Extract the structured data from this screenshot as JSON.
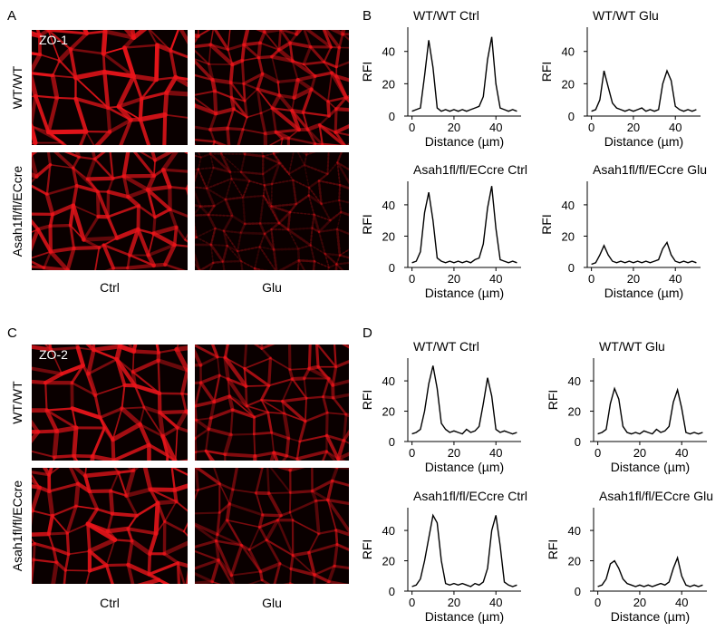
{
  "panels": [
    {
      "label": "A",
      "stain": "ZO-1",
      "rows": [
        "WT/WT",
        "Asah1fl/fl/ECcre"
      ],
      "columns": [
        "Ctrl",
        "Glu"
      ]
    },
    {
      "label": "B"
    },
    {
      "label": "C",
      "stain": "ZO-2",
      "rows": [
        "WT/WT",
        "Asah1fl/fl/ECcre"
      ],
      "columns": [
        "Ctrl",
        "Glu"
      ]
    },
    {
      "label": "D"
    }
  ],
  "chart_data": [
    {
      "type": "line",
      "title": "WT/WT Ctrl",
      "x_label": "Distance (µm)",
      "y_label": "RFI",
      "color": "#000000",
      "x": [
        0,
        2,
        4,
        6,
        8,
        10,
        12,
        14,
        16,
        18,
        20,
        22,
        24,
        26,
        28,
        30,
        32,
        34,
        36,
        38,
        40,
        42,
        44,
        46,
        48,
        50
      ],
      "values": [
        3,
        4,
        5,
        25,
        47,
        30,
        5,
        3,
        4,
        3,
        4,
        3,
        4,
        3,
        4,
        5,
        6,
        12,
        35,
        49,
        20,
        5,
        4,
        3,
        4,
        3
      ],
      "xlim": [
        -2,
        52
      ],
      "xticks": [
        0,
        20,
        40
      ],
      "ylim": [
        0,
        55
      ],
      "yticks": [
        0,
        20,
        40
      ]
    },
    {
      "type": "line",
      "title": "WT/WT Glu",
      "x_label": "Distance (µm)",
      "y_label": "RFI",
      "color": "#000000",
      "x": [
        0,
        2,
        4,
        6,
        8,
        10,
        12,
        14,
        16,
        18,
        20,
        22,
        24,
        26,
        28,
        30,
        32,
        34,
        36,
        38,
        40,
        42,
        44,
        46,
        48,
        50
      ],
      "values": [
        3,
        4,
        10,
        28,
        18,
        8,
        5,
        4,
        3,
        4,
        3,
        4,
        5,
        3,
        4,
        3,
        4,
        20,
        28,
        22,
        6,
        4,
        3,
        4,
        3,
        4
      ],
      "xlim": [
        -2,
        52
      ],
      "xticks": [
        0,
        20,
        40
      ],
      "ylim": [
        0,
        55
      ],
      "yticks": [
        0,
        20,
        40
      ]
    },
    {
      "type": "line",
      "title": "Asah1fl/fl/ECcre Ctrl",
      "x_label": "Distance (µm)",
      "y_label": "RFI",
      "color": "#000000",
      "x": [
        0,
        2,
        4,
        6,
        8,
        10,
        12,
        14,
        16,
        18,
        20,
        22,
        24,
        26,
        28,
        30,
        32,
        34,
        36,
        38,
        40,
        42,
        44,
        46,
        48,
        50
      ],
      "values": [
        3,
        4,
        10,
        35,
        48,
        30,
        6,
        4,
        3,
        4,
        3,
        4,
        3,
        4,
        3,
        5,
        6,
        15,
        38,
        52,
        25,
        5,
        4,
        3,
        4,
        3
      ],
      "xlim": [
        -2,
        52
      ],
      "xticks": [
        0,
        20,
        40
      ],
      "ylim": [
        0,
        55
      ],
      "yticks": [
        0,
        20,
        40
      ]
    },
    {
      "type": "line",
      "title": "Asah1fl/fl/ECcre Glu",
      "x_label": "Distance (µm)",
      "y_label": "RFI",
      "color": "#000000",
      "x": [
        0,
        2,
        4,
        6,
        8,
        10,
        12,
        14,
        16,
        18,
        20,
        22,
        24,
        26,
        28,
        30,
        32,
        34,
        36,
        38,
        40,
        42,
        44,
        46,
        48,
        50
      ],
      "values": [
        2,
        3,
        8,
        14,
        8,
        4,
        3,
        4,
        3,
        4,
        3,
        4,
        3,
        4,
        3,
        4,
        5,
        12,
        16,
        8,
        4,
        3,
        4,
        3,
        4,
        3
      ],
      "xlim": [
        -2,
        52
      ],
      "xticks": [
        0,
        20,
        40
      ],
      "ylim": [
        0,
        55
      ],
      "yticks": [
        0,
        20,
        40
      ]
    },
    {
      "type": "line",
      "title": "WT/WT Ctrl",
      "x_label": "Distance (µm)",
      "y_label": "RFI",
      "color": "#000000",
      "x": [
        0,
        2,
        4,
        6,
        8,
        10,
        12,
        14,
        16,
        18,
        20,
        22,
        24,
        26,
        28,
        30,
        32,
        34,
        36,
        38,
        40,
        42,
        44,
        46,
        48,
        50
      ],
      "values": [
        5,
        6,
        8,
        20,
        38,
        50,
        35,
        12,
        8,
        6,
        7,
        6,
        5,
        8,
        6,
        7,
        10,
        25,
        42,
        30,
        8,
        6,
        7,
        6,
        5,
        6
      ],
      "xlim": [
        -2,
        52
      ],
      "xticks": [
        0,
        20,
        40
      ],
      "ylim": [
        0,
        55
      ],
      "yticks": [
        0,
        20,
        40
      ]
    },
    {
      "type": "line",
      "title": "WT/WT Glu",
      "x_label": "Distance (µm)",
      "y_label": "RFI",
      "color": "#000000",
      "x": [
        0,
        2,
        4,
        6,
        8,
        10,
        12,
        14,
        16,
        18,
        20,
        22,
        24,
        26,
        28,
        30,
        32,
        34,
        36,
        38,
        40,
        42,
        44,
        46,
        48,
        50
      ],
      "values": [
        5,
        6,
        8,
        25,
        35,
        28,
        10,
        6,
        5,
        6,
        5,
        7,
        6,
        5,
        8,
        6,
        7,
        10,
        26,
        34,
        22,
        6,
        5,
        6,
        5,
        6
      ],
      "xlim": [
        -2,
        52
      ],
      "xticks": [
        0,
        20,
        40
      ],
      "ylim": [
        0,
        55
      ],
      "yticks": [
        0,
        20,
        40
      ]
    },
    {
      "type": "line",
      "title": "Asah1fl/fl/ECcre Ctrl",
      "x_label": "Distance (µm)",
      "y_label": "RFI",
      "color": "#000000",
      "x": [
        0,
        2,
        4,
        6,
        8,
        10,
        12,
        14,
        16,
        18,
        20,
        22,
        24,
        26,
        28,
        30,
        32,
        34,
        36,
        38,
        40,
        42,
        44,
        46,
        48,
        50
      ],
      "values": [
        3,
        4,
        8,
        20,
        35,
        50,
        45,
        20,
        5,
        4,
        5,
        4,
        5,
        4,
        3,
        5,
        4,
        6,
        15,
        40,
        50,
        30,
        6,
        4,
        3,
        4
      ],
      "xlim": [
        -2,
        52
      ],
      "xticks": [
        0,
        20,
        40
      ],
      "ylim": [
        0,
        55
      ],
      "yticks": [
        0,
        20,
        40
      ]
    },
    {
      "type": "line",
      "title": "Asah1fl/fl/ECcre Glu",
      "x_label": "Distance (µm)",
      "y_label": "RFI",
      "color": "#000000",
      "x": [
        0,
        2,
        4,
        6,
        8,
        10,
        12,
        14,
        16,
        18,
        20,
        22,
        24,
        26,
        28,
        30,
        32,
        34,
        36,
        38,
        40,
        42,
        44,
        46,
        48,
        50
      ],
      "values": [
        3,
        4,
        8,
        18,
        20,
        15,
        8,
        5,
        4,
        3,
        4,
        3,
        4,
        3,
        4,
        5,
        4,
        6,
        15,
        22,
        10,
        4,
        3,
        4,
        3,
        4
      ],
      "xlim": [
        -2,
        52
      ],
      "xticks": [
        0,
        20,
        40
      ],
      "ylim": [
        0,
        55
      ],
      "yticks": [
        0,
        20,
        40
      ]
    }
  ]
}
